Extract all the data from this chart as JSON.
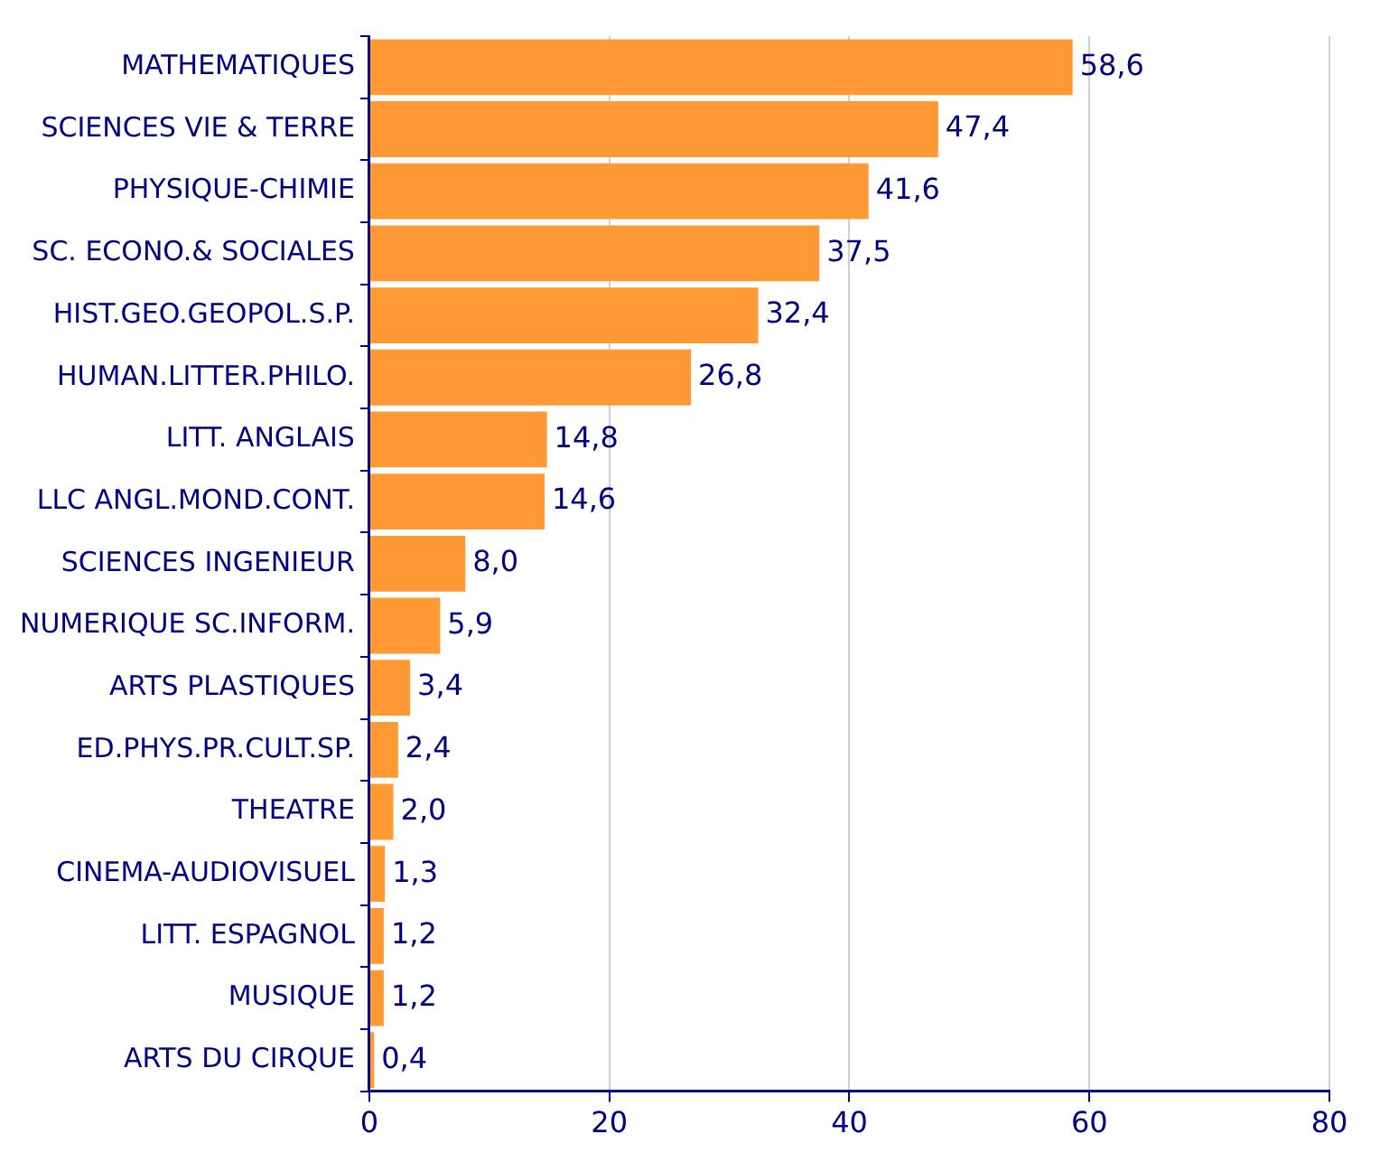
{
  "chart_data": {
    "type": "bar",
    "orientation": "horizontal",
    "categories": [
      "MATHEMATIQUES",
      "SCIENCES VIE & TERRE",
      "PHYSIQUE-CHIMIE",
      "SC. ECONO.& SOCIALES",
      "HIST.GEO.GEOPOL.S.P.",
      "HUMAN.LITTER.PHILO.",
      "LITT. ANGLAIS",
      "LLC ANGL.MOND.CONT.",
      "SCIENCES INGENIEUR",
      "NUMERIQUE SC.INFORM.",
      "ARTS PLASTIQUES",
      "ED.PHYS.PR.CULT.SP.",
      "THEATRE",
      "CINEMA-AUDIOVISUEL",
      "LITT. ESPAGNOL",
      "MUSIQUE",
      "ARTS DU CIRQUE"
    ],
    "values": [
      58.6,
      47.4,
      41.6,
      37.5,
      32.4,
      26.8,
      14.8,
      14.6,
      8.0,
      5.9,
      3.4,
      2.4,
      2.0,
      1.3,
      1.2,
      1.2,
      0.4
    ],
    "value_labels": [
      "58,6",
      "47,4",
      "41,6",
      "37,5",
      "32,4",
      "26,8",
      "14,8",
      "14,6",
      "8,0",
      "5,9",
      "3,4",
      "2,4",
      "2,0",
      "1,3",
      "1,2",
      "1,2",
      "0,4"
    ],
    "color": "#ff9933",
    "xlim": [
      0,
      80
    ],
    "xticks": [
      0,
      20,
      40,
      60,
      80
    ],
    "grid": "x"
  }
}
